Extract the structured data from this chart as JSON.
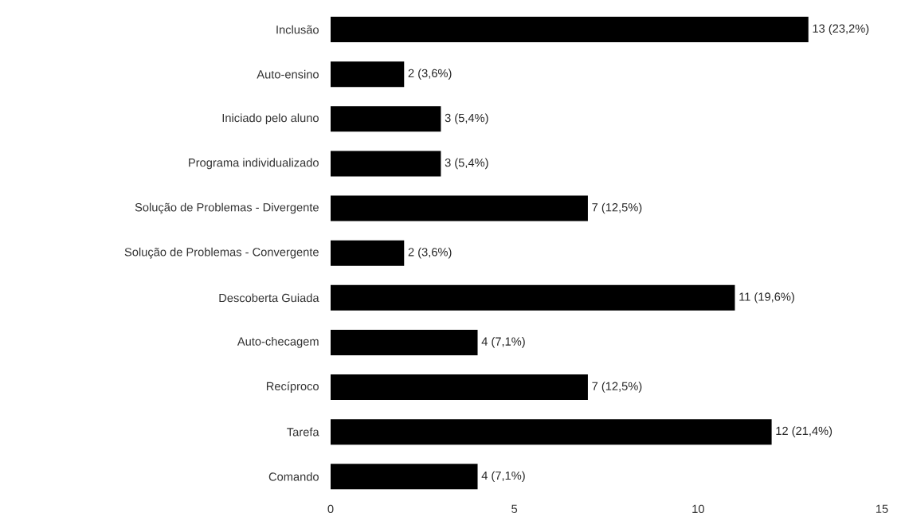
{
  "chart_data": {
    "type": "bar",
    "orientation": "horizontal",
    "categories": [
      "Inclusão",
      "Auto-ensino",
      "Iniciado pelo aluno",
      "Programa individualizado",
      "Solução de Problemas - Divergente",
      "Solução de Problemas - Convergente",
      "Descoberta Guiada",
      "Auto-checagem",
      "Recíproco",
      "Tarefa",
      "Comando"
    ],
    "values": [
      13,
      2,
      3,
      3,
      7,
      2,
      11,
      4,
      7,
      12,
      4
    ],
    "value_labels": [
      "13 (23,2%)",
      "2 (3,6%)",
      "3 (5,4%)",
      "3 (5,4%)",
      "7 (12,5%)",
      "2 (3,6%)",
      "11 (19,6%)",
      "4 (7,1%)",
      "7 (12,5%)",
      "12 (21,4%)",
      "4 (7,1%)"
    ],
    "color": "#000000",
    "xlim": [
      0,
      15
    ],
    "xticks": [
      0,
      5,
      10,
      15
    ],
    "grid": false
  }
}
